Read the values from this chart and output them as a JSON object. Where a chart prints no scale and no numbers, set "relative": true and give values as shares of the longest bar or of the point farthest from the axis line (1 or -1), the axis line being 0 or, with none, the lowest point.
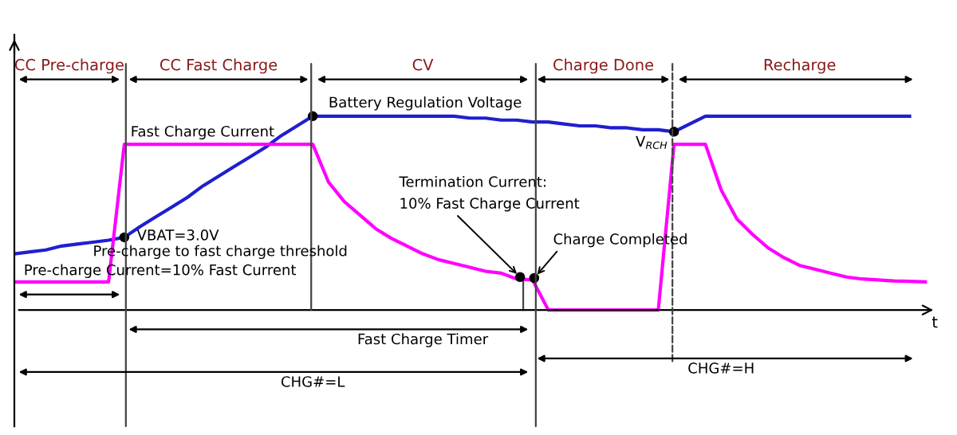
{
  "chart_data": {
    "type": "line",
    "relative": true,
    "xlabel": "t",
    "categories": [
      null,
      null,
      null,
      null,
      null,
      null,
      null,
      null,
      null,
      null,
      null,
      null,
      null,
      null,
      null,
      null,
      null,
      null,
      null,
      null,
      null,
      null,
      null,
      null,
      null,
      null,
      null,
      null,
      null,
      null,
      null,
      null,
      null,
      null,
      null,
      null,
      null,
      null,
      null,
      null,
      null,
      null,
      null,
      null,
      null,
      null,
      null,
      null,
      null,
      null,
      null,
      null,
      null,
      null,
      null,
      null,
      null,
      null,
      null
    ],
    "legend": false,
    "marker": "none",
    "line_style": "solid",
    "series": [
      {
        "color": "#1f1fd0",
        "values": [
          0.29,
          0.3,
          0.31,
          0.33,
          0.34,
          0.35,
          0.36,
          0.375,
          0.43,
          0.48,
          0.53,
          0.58,
          0.64,
          0.69,
          0.74,
          0.79,
          0.84,
          0.9,
          0.95,
          1,
          1,
          1,
          1,
          1,
          1,
          1,
          1,
          1,
          1,
          0.99,
          0.99,
          0.98,
          0.98,
          0.97,
          0.97,
          0.96,
          0.95,
          0.95,
          0.94,
          0.94,
          0.93,
          0.93,
          0.92,
          0.96,
          1,
          1,
          1,
          1,
          1,
          1,
          1,
          1,
          1,
          1,
          1,
          1,
          1,
          1,
          null
        ]
      },
      {
        "color": "#ff00ff",
        "values": [
          0.145,
          0.145,
          0.145,
          0.145,
          0.145,
          0.145,
          0.145,
          0.855,
          0.855,
          0.855,
          0.855,
          0.855,
          0.855,
          0.855,
          0.855,
          0.855,
          0.855,
          0.855,
          0.855,
          0.855,
          0.66,
          0.56,
          0.49,
          0.42,
          0.37,
          0.33,
          0.29,
          0.26,
          0.24,
          0.22,
          0.2,
          0.19,
          0.16,
          0.155,
          0,
          0,
          0,
          0,
          0,
          0,
          0,
          0,
          0.855,
          0.855,
          0.855,
          0.62,
          0.47,
          0.39,
          0.32,
          0.27,
          0.23,
          0.21,
          0.19,
          0.17,
          0.16,
          0.155,
          0.15,
          0.148,
          0.145
        ]
      }
    ],
    "annotations": [
      "CC Pre-charge",
      "CC Fast Charge",
      "CV",
      "Charge Done",
      "Recharge",
      "Battery Regulation Voltage",
      "Fast Charge Current",
      "VBAT=3.0V",
      "Pre-charge to fast charge threshold",
      "Pre-charge Current=10% Fast Current",
      "Termination Current:\n10% Fast Charge Current",
      "Charge Completed",
      "V$_{RCH}$",
      "Fast Charge Timer",
      "CHG#=L",
      "CHG#=H"
    ]
  }
}
